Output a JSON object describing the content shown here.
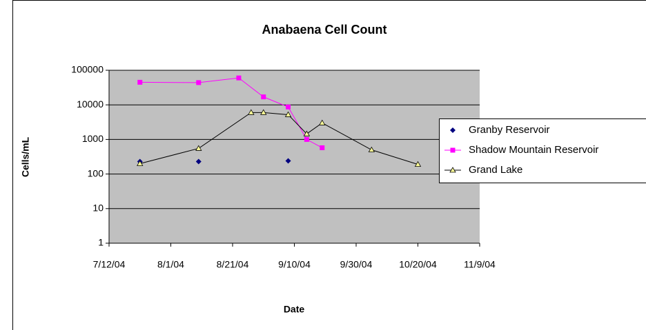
{
  "chart_data": {
    "type": "scatter",
    "title": "Anabaena Cell Count",
    "x_label": "Date",
    "y_label": "Cells/mL",
    "xlim": [
      "2004-07-12",
      "2004-11-09"
    ],
    "xticks": [
      {
        "value": "2004-07-12",
        "label": "7/12/04"
      },
      {
        "value": "2004-08-01",
        "label": "8/1/04"
      },
      {
        "value": "2004-08-21",
        "label": "8/21/04"
      },
      {
        "value": "2004-09-10",
        "label": "9/10/04"
      },
      {
        "value": "2004-09-30",
        "label": "9/30/04"
      },
      {
        "value": "2004-10-20",
        "label": "10/20/04"
      },
      {
        "value": "2004-11-09",
        "label": "11/9/04"
      }
    ],
    "ylim": [
      1,
      100000
    ],
    "yticks": [
      1,
      10,
      100,
      1000,
      10000,
      100000
    ],
    "log_y": true,
    "grid": true,
    "legend": "right",
    "series": [
      {
        "name": "Granby Reservoir",
        "color": "#000080",
        "marker": "diamond",
        "line": false,
        "x": [
          "2004-07-22",
          "2004-08-10",
          "2004-09-08"
        ],
        "values": [
          229,
          230,
          240
        ]
      },
      {
        "name": "Shadow Mountain Reservoir",
        "color": "#ff00ff",
        "marker": "square",
        "line": true,
        "x": [
          "2004-07-22",
          "2004-08-10",
          "2004-08-23",
          "2004-08-31",
          "2004-09-08",
          "2004-09-14",
          "2004-09-19"
        ],
        "values": [
          45000,
          44000,
          60000,
          17000,
          8700,
          1000,
          575
        ]
      },
      {
        "name": "Grand Lake",
        "color": "#000000",
        "marker": "triangle",
        "line": true,
        "x": [
          "2004-07-22",
          "2004-08-10",
          "2004-08-27",
          "2004-08-31",
          "2004-09-08",
          "2004-09-14",
          "2004-09-19",
          "2004-10-05",
          "2004-10-20"
        ],
        "values": [
          200,
          550,
          6000,
          6000,
          5200,
          1450,
          3000,
          500,
          190
        ]
      }
    ]
  }
}
